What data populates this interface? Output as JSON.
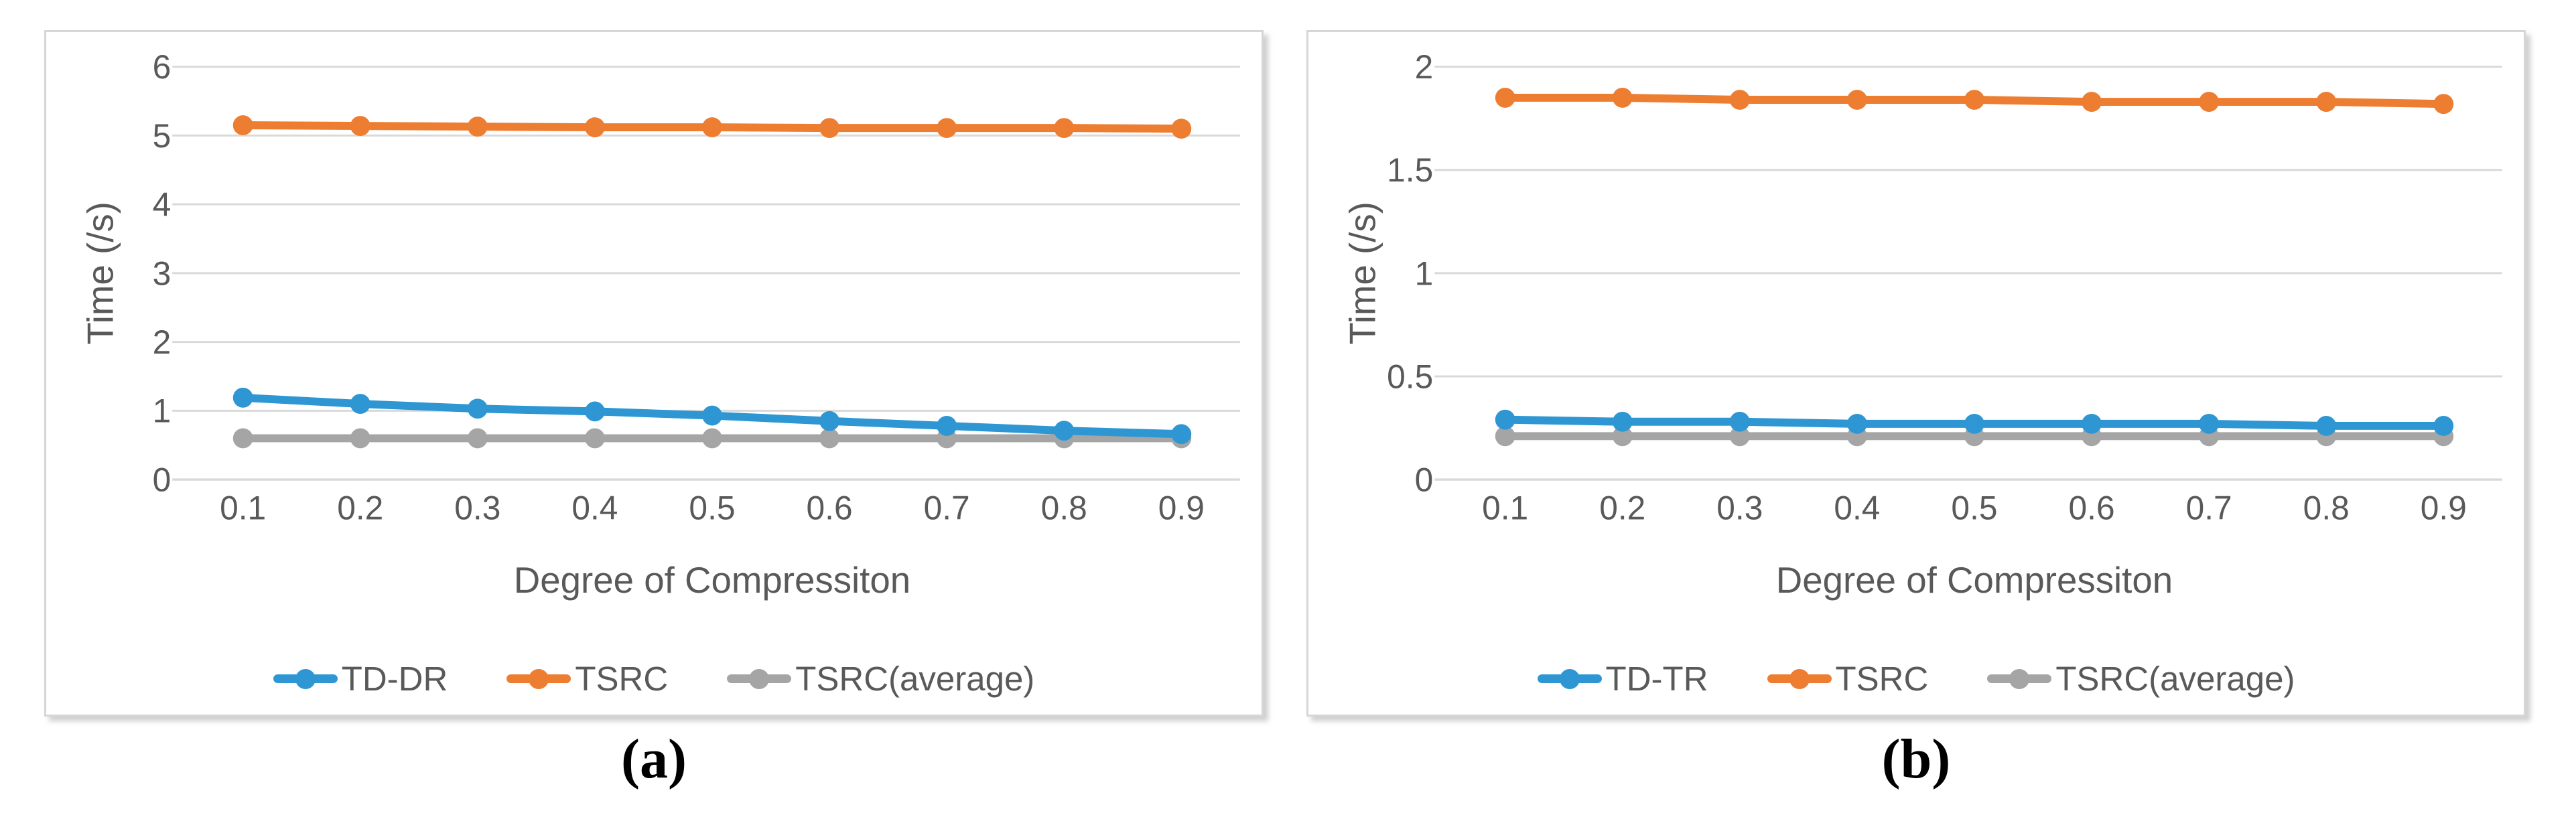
{
  "theme": {
    "grid_color": "#d9d9d9",
    "axis_line_color": "#d0d0d0",
    "text_color": "#595959",
    "panel_border_color": "#d6d6d6",
    "background": "#ffffff"
  },
  "captions": {
    "a": "(a)",
    "b": "(b)"
  },
  "chart_data": [
    {
      "id": "a",
      "type": "line",
      "caption": "(a)",
      "xlabel": "Degree of Compressiton",
      "ylabel": "Time (/s)",
      "ylim": [
        0,
        6
      ],
      "ytick_values": [
        0,
        1,
        2,
        3,
        4,
        5,
        6
      ],
      "ytick_labels": [
        "0",
        "1",
        "2",
        "3",
        "4",
        "5",
        "6"
      ],
      "categories": [
        "0.1",
        "0.2",
        "0.3",
        "0.4",
        "0.5",
        "0.6",
        "0.7",
        "0.8",
        "0.9"
      ],
      "grid": true,
      "legend_position": "bottom",
      "series": [
        {
          "name": "TD-DR",
          "color": "#2e97d3",
          "values": [
            1.19,
            1.1,
            1.03,
            0.99,
            0.93,
            0.85,
            0.78,
            0.71,
            0.66
          ]
        },
        {
          "name": "TSRC",
          "color": "#ed7d31",
          "values": [
            5.15,
            5.14,
            5.13,
            5.12,
            5.12,
            5.11,
            5.11,
            5.11,
            5.1
          ]
        },
        {
          "name": "TSRC(average)",
          "color": "#a5a5a5",
          "values": [
            0.6,
            0.6,
            0.6,
            0.6,
            0.6,
            0.6,
            0.6,
            0.6,
            0.6
          ]
        }
      ]
    },
    {
      "id": "b",
      "type": "line",
      "caption": "(b)",
      "xlabel": "Degree of Compressiton",
      "ylabel": "Time (/s)",
      "ylim": [
        0,
        2
      ],
      "ytick_values": [
        0,
        0.5,
        1,
        1.5,
        2
      ],
      "ytick_labels": [
        "0",
        "0.5",
        "1",
        "1.5",
        "2"
      ],
      "categories": [
        "0.1",
        "0.2",
        "0.3",
        "0.4",
        "0.5",
        "0.6",
        "0.7",
        "0.8",
        "0.9"
      ],
      "grid": true,
      "legend_position": "bottom",
      "series": [
        {
          "name": "TD-TR",
          "color": "#2e97d3",
          "values": [
            0.29,
            0.28,
            0.28,
            0.27,
            0.27,
            0.27,
            0.27,
            0.26,
            0.26
          ]
        },
        {
          "name": "TSRC",
          "color": "#ed7d31",
          "values": [
            1.85,
            1.85,
            1.84,
            1.84,
            1.84,
            1.83,
            1.83,
            1.83,
            1.82
          ]
        },
        {
          "name": "TSRC(average)",
          "color": "#a5a5a5",
          "values": [
            0.21,
            0.21,
            0.21,
            0.21,
            0.21,
            0.21,
            0.21,
            0.21,
            0.21
          ]
        }
      ]
    }
  ]
}
